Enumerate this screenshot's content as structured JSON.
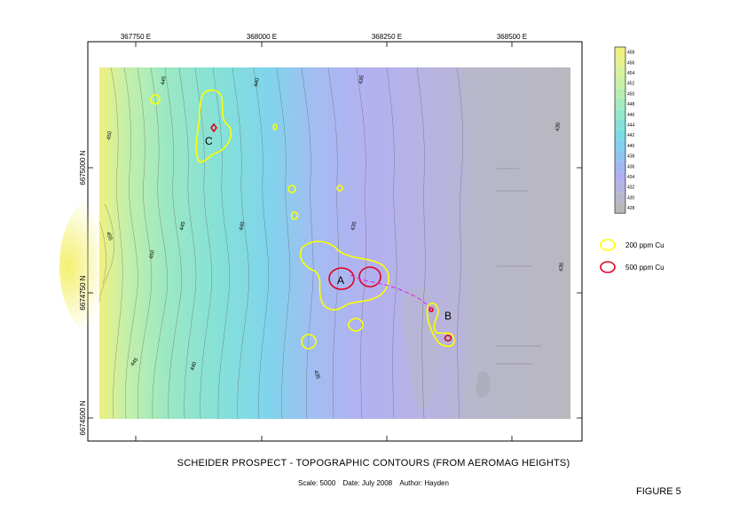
{
  "title": "SCHEIDER PROSPECT - TOPOGRAPHIC CONTOURS (FROM AEROMAG HEIGHTS)",
  "subtitle": {
    "scale": "Scale: 5000",
    "date": "Date: July 2008",
    "author": "Author: Hayden"
  },
  "figure_label": "FIGURE 5",
  "axes": {
    "x_ticks": [
      "367750 E",
      "368000 E",
      "368250 E",
      "368500 E"
    ],
    "y_ticks": [
      "6675000 N",
      "6674750 N",
      "6674500 N"
    ]
  },
  "colorbar": {
    "values": [
      "458",
      "456",
      "454",
      "452",
      "450",
      "448",
      "446",
      "444",
      "442",
      "440",
      "438",
      "436",
      "434",
      "432",
      "430",
      "428"
    ],
    "colors": [
      "#f0f080",
      "#e4f290",
      "#d6f29c",
      "#c8f0a6",
      "#b6eeb2",
      "#a4eabe",
      "#92e6cc",
      "#84e0d8",
      "#7cdae4",
      "#80d0ee",
      "#90c4f0",
      "#a0b8f0",
      "#b0b0f0",
      "#b4b4e0",
      "#b8b8cc",
      "#b8b8b8"
    ]
  },
  "legend": [
    {
      "label": "200 ppm Cu",
      "color": "#ffff00"
    },
    {
      "label": "500 ppm Cu",
      "color": "#e00020"
    }
  ],
  "zones": [
    "A",
    "B",
    "C"
  ],
  "contour_labels": [
    "445",
    "440",
    "435",
    "450",
    "445",
    "440",
    "435",
    "455",
    "450",
    "445",
    "440",
    "435",
    "430",
    "430",
    "445",
    "440",
    "435"
  ]
}
